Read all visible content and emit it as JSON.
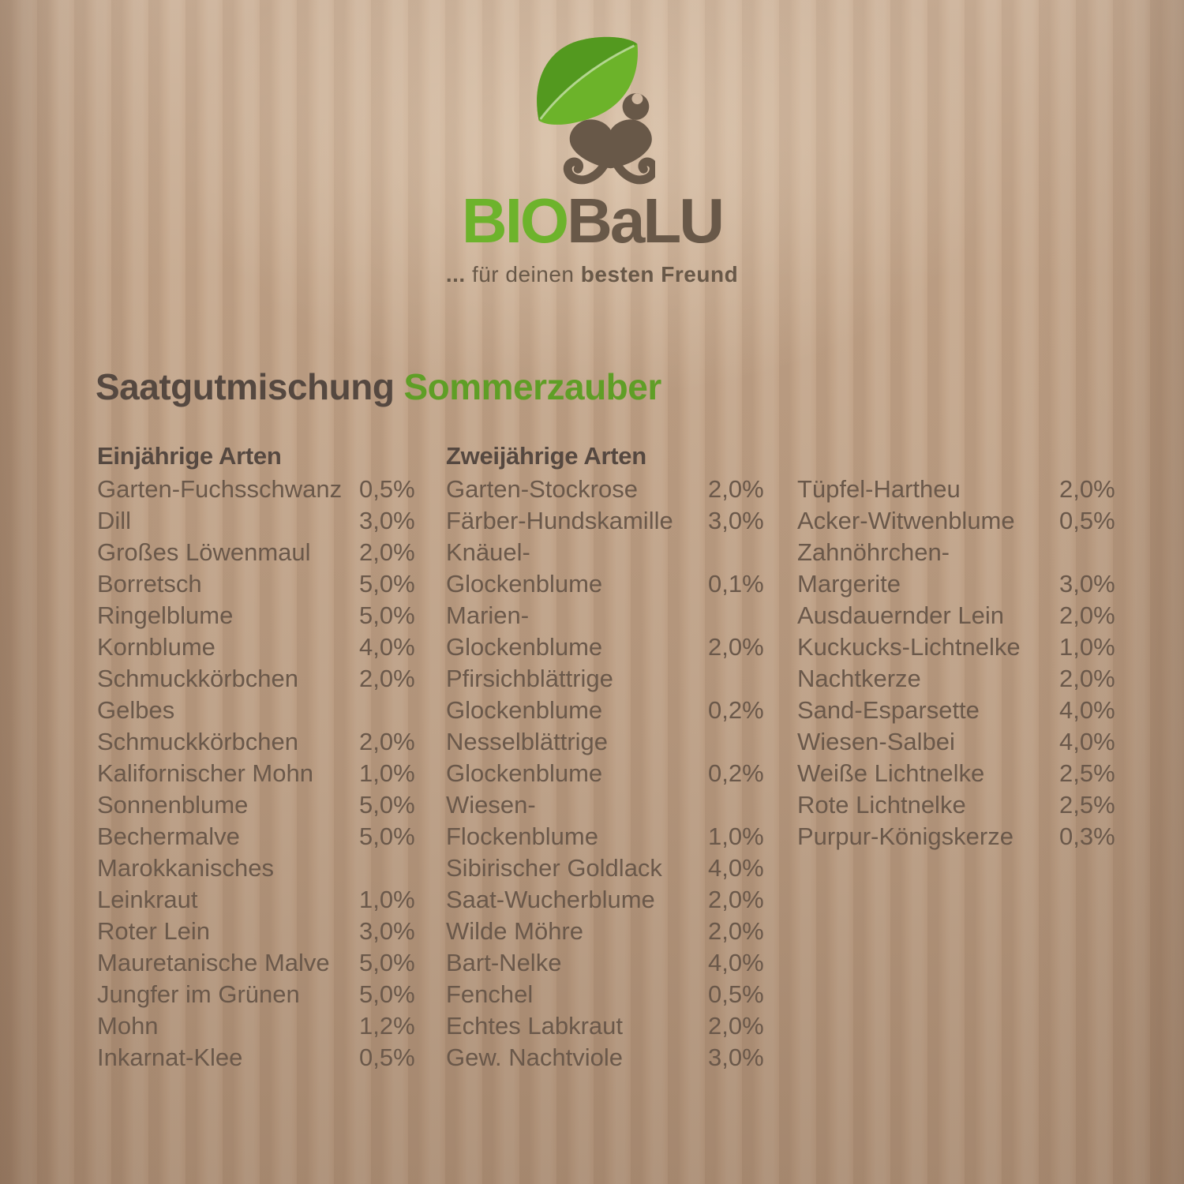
{
  "brand": {
    "bio": "BIO",
    "balu": "BaLU",
    "tagline_dots": "...",
    "tagline_light": "für deinen",
    "tagline_bold": "besten Freund"
  },
  "title": {
    "main": "Saatgutmischung",
    "accent": "Sommerzauber"
  },
  "columns": [
    {
      "header": "Einjährige Arten",
      "rows": [
        {
          "n": "Garten-Fuchsschwanz",
          "p": "0,5%"
        },
        {
          "n": "Dill",
          "p": "3,0%"
        },
        {
          "n": "Großes Löwenmaul",
          "p": "2,0%"
        },
        {
          "n": "Borretsch",
          "p": "5,0%"
        },
        {
          "n": "Ringelblume",
          "p": "5,0%"
        },
        {
          "n": "Kornblume",
          "p": "4,0%"
        },
        {
          "n": "Schmuckkörbchen",
          "p": "2,0%"
        },
        {
          "n": "Gelbes",
          "p": ""
        },
        {
          "n": "Schmuckkörbchen",
          "p": "2,0%"
        },
        {
          "n": "Kalifornischer Mohn",
          "p": "1,0%"
        },
        {
          "n": "Sonnenblume",
          "p": "5,0%"
        },
        {
          "n": "Bechermalve",
          "p": "5,0%"
        },
        {
          "n": "Marokkanisches",
          "p": ""
        },
        {
          "n": "Leinkraut",
          "p": "1,0%"
        },
        {
          "n": "Roter Lein",
          "p": "3,0%"
        },
        {
          "n": "Mauretanische Malve",
          "p": "5,0%"
        },
        {
          "n": "Jungfer im Grünen",
          "p": "5,0%"
        },
        {
          "n": "Mohn",
          "p": "1,2%"
        },
        {
          "n": "Inkarnat-Klee",
          "p": "0,5%"
        }
      ]
    },
    {
      "header": "Zweijährige Arten",
      "rows": [
        {
          "n": "Garten-Stockrose",
          "p": "2,0%"
        },
        {
          "n": "Färber-Hundskamille",
          "p": "3,0%"
        },
        {
          "n": "Knäuel-",
          "p": ""
        },
        {
          "n": "Glockenblume",
          "p": "0,1%"
        },
        {
          "n": "Marien-",
          "p": ""
        },
        {
          "n": "Glockenblume",
          "p": "2,0%"
        },
        {
          "n": "Pfirsichblättrige",
          "p": ""
        },
        {
          "n": "Glockenblume",
          "p": "0,2%"
        },
        {
          "n": "Nesselblättrige",
          "p": ""
        },
        {
          "n": "Glockenblume",
          "p": "0,2%"
        },
        {
          "n": "Wiesen-",
          "p": ""
        },
        {
          "n": "Flockenblume",
          "p": "1,0%"
        },
        {
          "n": "Sibirischer Goldlack",
          "p": "4,0%"
        },
        {
          "n": "Saat-Wucherblume",
          "p": "2,0%"
        },
        {
          "n": "Wilde Möhre",
          "p": "2,0%"
        },
        {
          "n": "Bart-Nelke",
          "p": "4,0%"
        },
        {
          "n": "Fenchel",
          "p": "0,5%"
        },
        {
          "n": "Echtes Labkraut",
          "p": "2,0%"
        },
        {
          "n": "Gew. Nachtviole",
          "p": "3,0%"
        }
      ]
    },
    {
      "header": "",
      "rows": [
        {
          "n": "Tüpfel-Hartheu",
          "p": "2,0%"
        },
        {
          "n": "Acker-Witwenblume",
          "p": "0,5%"
        },
        {
          "n": "Zahnöhrchen-",
          "p": ""
        },
        {
          "n": "Margerite",
          "p": "3,0%"
        },
        {
          "n": "Ausdauernder Lein",
          "p": "2,0%"
        },
        {
          "n": "Kuckucks-Lichtnelke",
          "p": "1,0%"
        },
        {
          "n": "Nachtkerze",
          "p": "2,0%"
        },
        {
          "n": "Sand-Esparsette",
          "p": "4,0%"
        },
        {
          "n": "Wiesen-Salbei",
          "p": "4,0%"
        },
        {
          "n": "Weiße Lichtnelke",
          "p": "2,5%"
        },
        {
          "n": "Rote Lichtnelke",
          "p": "2,5%"
        },
        {
          "n": "Purpur-Königskerze",
          "p": "0,3%"
        }
      ]
    }
  ],
  "colors": {
    "paper": "#c3a58a",
    "leaf_dark_green": "#53991f",
    "leaf_light_green": "#6cb32a",
    "brand_green": "#6db32c",
    "brand_brown": "#685848",
    "title_brown": "#554840",
    "title_green": "#5f9e26",
    "list_text": "#6a584a"
  }
}
